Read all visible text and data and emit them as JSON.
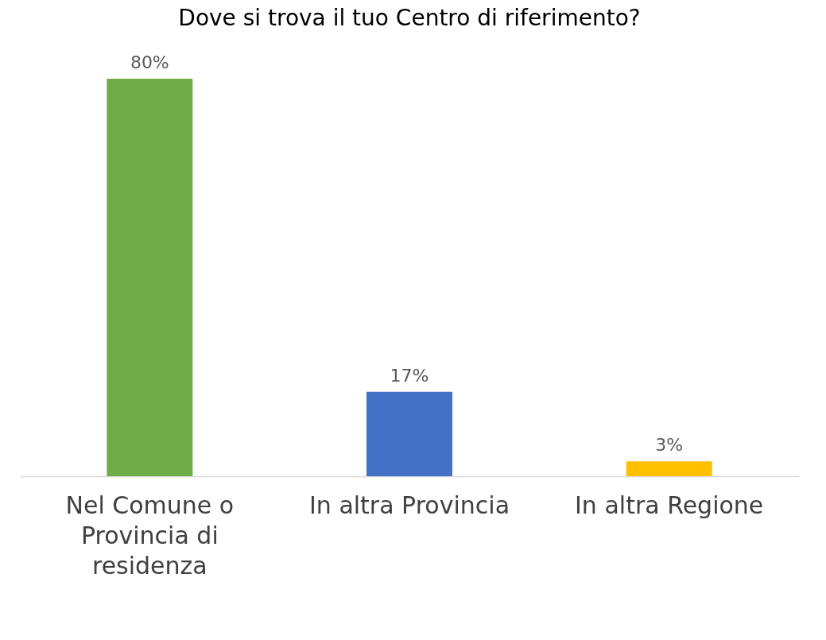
{
  "chart_data": {
    "type": "bar",
    "title": "Dove si trova il tuo Centro di riferimento?",
    "categories": [
      "Nel Comune o Provincia di residenza",
      "In altra Provincia",
      "In altra Regione"
    ],
    "values": [
      80,
      17,
      3
    ],
    "colors": [
      "#70ad47",
      "#4472c4",
      "#ffc000"
    ],
    "value_labels": [
      "80%",
      "17%",
      "3%"
    ]
  }
}
